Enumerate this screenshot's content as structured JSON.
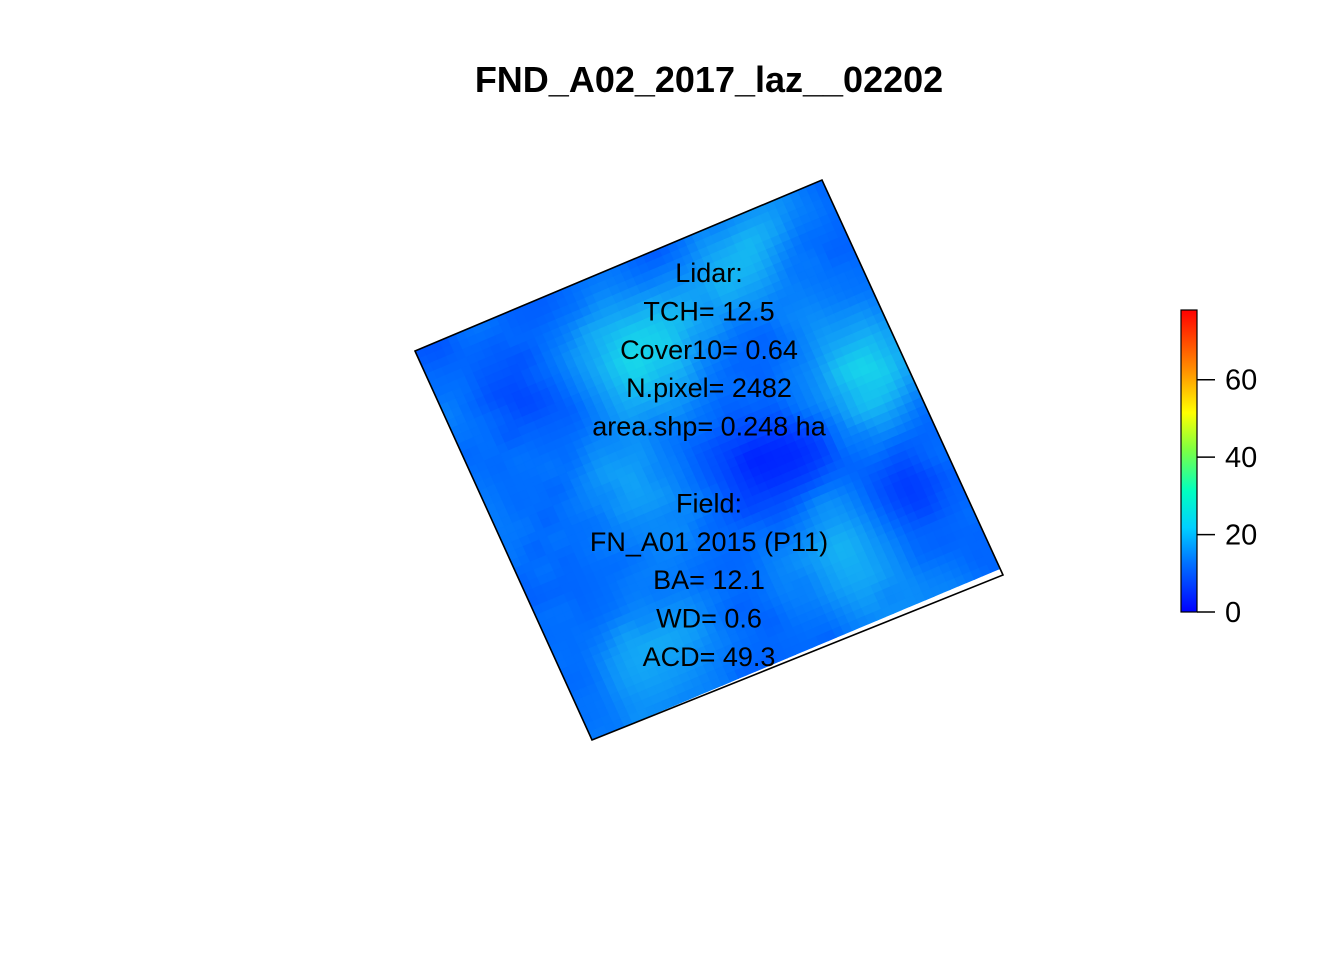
{
  "chart_data": {
    "type": "heatmap",
    "title": "FND_A02_2017_laz__02202",
    "color_scale": {
      "min": 0,
      "max": 78,
      "ticks": [
        0,
        20,
        40,
        60
      ],
      "palette": [
        "#0000ff",
        "#00a0ff",
        "#00ffff",
        "#80ff80",
        "#ffff00",
        "#ff8000",
        "#ff0000"
      ]
    },
    "annotation_lines": [
      "Lidar:",
      "TCH= 12.5",
      "Cover10= 0.64",
      "N.pixel= 2482",
      "area.shp= 0.248 ha",
      "",
      "Field:",
      "FN_A01 2015 (P11)",
      "BA= 12.1",
      "WD= 0.6",
      "ACD= 49.3"
    ],
    "legend_position": "right"
  }
}
